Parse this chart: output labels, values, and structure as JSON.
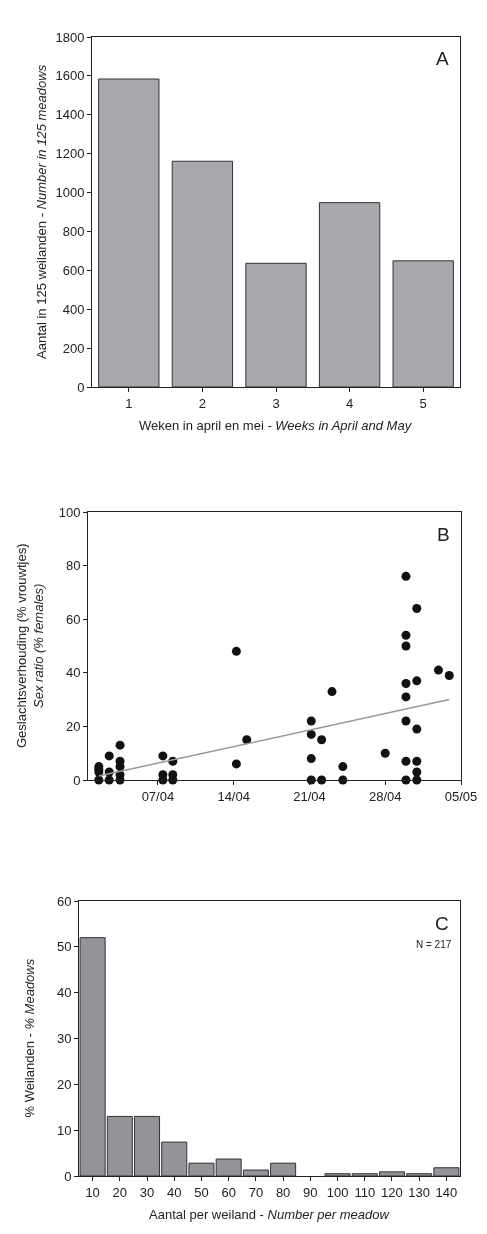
{
  "chart_data": [
    {
      "type": "bar",
      "xlabel": "Weken in april en mei - Weeks in April and May",
      "ylabel": "Aantal in 125 weilanden - Number in 125 meadows",
      "categories": [
        "1",
        "2",
        "3",
        "4",
        "5"
      ],
      "values": [
        1584,
        1161,
        636,
        948,
        649
      ],
      "color": "#a7a8ab",
      "ylim": [
        0,
        1800
      ],
      "yticks": [
        0,
        200,
        400,
        600,
        800,
        1000,
        1200,
        1400,
        1600,
        1800
      ],
      "annotations": [
        "A"
      ]
    },
    {
      "type": "scatter",
      "ylabel": "Geslachtsverhouding (% vrouwtjes)\nSex ratio (% females)",
      "annotations": [
        "B"
      ],
      "xlim": [
        "--03-31T13:00",
        "--05-05"
      ],
      "xticks": [
        {
          "value": "--04-07",
          "label": "07/04"
        },
        {
          "value": "--04-14",
          "label": "14/04"
        },
        {
          "value": "--04-21",
          "label": "21/04"
        },
        {
          "value": "--04-28",
          "label": "28/04"
        },
        {
          "value": "--05-05",
          "label": "05/05"
        }
      ],
      "ylim": [
        0,
        100
      ],
      "yticks": [
        0,
        20,
        40,
        60,
        80,
        100
      ],
      "series": [
        {
          "type": "scatter",
          "marker": "circle",
          "color": "#111111",
          "x": [
            "--04-01T13:00",
            "--04-01T13:00",
            "--04-01T13:00",
            "--04-01T13:00",
            "--04-02T12:00",
            "--04-02T12:00",
            "--04-02T12:00",
            "--04-03T12:00",
            "--04-03T12:00",
            "--04-03T12:00",
            "--04-03T12:00",
            "--04-03T12:00",
            "--04-07T11:00",
            "--04-07T11:00",
            "--04-07T11:00",
            "--04-08T09:00",
            "--04-08T09:00",
            "--04-08T09:00",
            "--04-14T06:00",
            "--04-14T06:00",
            "--04-15T05:00",
            "--04-21T04:00",
            "--04-21T04:00",
            "--04-21T04:00",
            "--04-21T04:00",
            "--04-22T03:00",
            "--04-22T03:00",
            "--04-23T02:00",
            "--04-24T02:00",
            "--04-24T02:00",
            "--04-28",
            "--04-29T22:00",
            "--04-29T22:00",
            "--04-29T22:00",
            "--04-29T22:00",
            "--04-29T22:00",
            "--04-29T22:00",
            "--04-29T22:00",
            "--04-29T22:00",
            "--04-30T22:00",
            "--04-30T22:00",
            "--04-30T22:00",
            "--04-30T22:00",
            "--04-30T22:00",
            "--04-30T22:00",
            "--05-02T22:00",
            "--05-03T22:00"
          ],
          "values": [
            5,
            4,
            3,
            0,
            9,
            3,
            0,
            13,
            7,
            5,
            2,
            0,
            9,
            2,
            0,
            7,
            2,
            0,
            48,
            6,
            15,
            22,
            17,
            8,
            0,
            15,
            0,
            33,
            5,
            0,
            10,
            76,
            54,
            50,
            36,
            31,
            22,
            7,
            0,
            64,
            37,
            19,
            7,
            3,
            0,
            41,
            39
          ]
        },
        {
          "type": "line",
          "color": "#999999",
          "x": [
            "--04-01T13:00",
            "--05-03T22:00"
          ],
          "values": [
            1.5,
            30
          ]
        }
      ]
    },
    {
      "type": "bar",
      "xlabel": "Aantal per weiland - Number per meadow",
      "ylabel": "% Weilanden - % Meadows",
      "categories": [
        "10",
        "20",
        "30",
        "40",
        "50",
        "60",
        "70",
        "80",
        "90",
        "100",
        "110",
        "120",
        "130",
        "140"
      ],
      "values": [
        52,
        13,
        13,
        7.4,
        2.8,
        3.7,
        1.3,
        2.8,
        null,
        0.5,
        0.5,
        0.9,
        0.5,
        1.8
      ],
      "color": "#939497",
      "ylim": [
        0,
        60
      ],
      "yticks": [
        0,
        10,
        20,
        30,
        40,
        50,
        60
      ],
      "annotations": [
        "C",
        "N = 217"
      ]
    }
  ]
}
